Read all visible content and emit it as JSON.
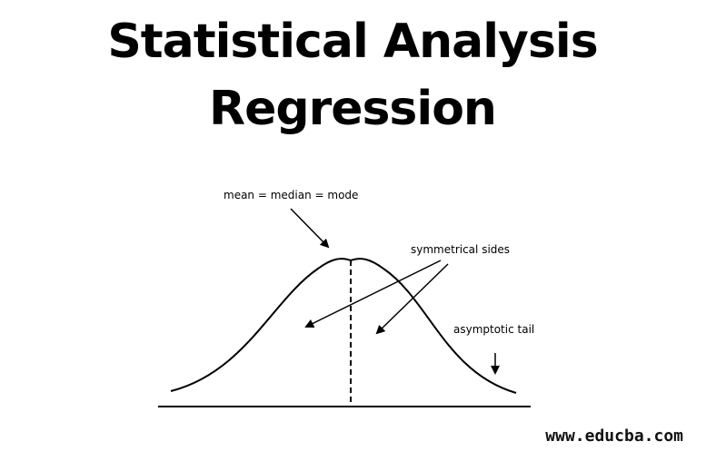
{
  "title": {
    "line1": "Statistical Analysis",
    "line2": "Regression"
  },
  "labels": {
    "center": "mean = median = mode",
    "sides": "symmetrical sides",
    "tail": "asymptotic tail"
  },
  "watermark": "www.educba.com",
  "colors": {
    "ink": "#000000",
    "background": "#ffffff"
  }
}
